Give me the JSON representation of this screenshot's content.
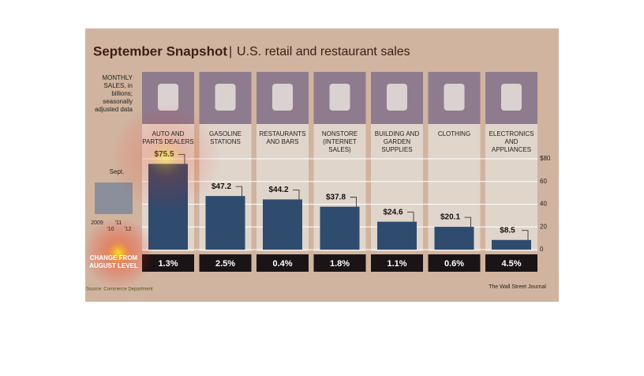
{
  "chart_data": {
    "type": "bar",
    "title": "September Snapshot",
    "subtitle": "U.S. retail and restaurant sales",
    "axis_note": "MONTHLY SALES, in billions; seasonally adjusted data",
    "inset_label": "Sept.",
    "inset_years": [
      "2009",
      "'10",
      "'11",
      "'12"
    ],
    "change_title": "CHANGE FROM AUGUST LEVEL",
    "categories": [
      "AUTO AND PARTS DEALERS",
      "GASOLINE STATIONS",
      "RESTAURANTS AND BARS",
      "NONSTORE (INTERNET SALES)",
      "BUILDING AND GARDEN SUPPLIES",
      "CLOTHING",
      "ELECTRONICS AND APPLIANCES"
    ],
    "values": [
      75.5,
      47.2,
      44.2,
      37.8,
      24.6,
      20.1,
      8.5
    ],
    "value_labels": [
      "$75.5",
      "$47.2",
      "$44.2",
      "$37.8",
      "$24.6",
      "$20.1",
      "$8.5"
    ],
    "changes": [
      1.3,
      2.5,
      0.4,
      1.8,
      1.1,
      0.6,
      4.5
    ],
    "change_labels": [
      "1.3%",
      "2.5%",
      "0.4%",
      "1.8%",
      "1.1%",
      "0.6%",
      "4.5%"
    ],
    "color": "#2f4c6e",
    "ylim": [
      0,
      80
    ],
    "yticks": [
      {
        "value": 80,
        "label": "$80"
      },
      60,
      40,
      20,
      0
    ],
    "grid": true,
    "source": "Source: Commerce Department",
    "credit": "The Wall Street Journal"
  }
}
